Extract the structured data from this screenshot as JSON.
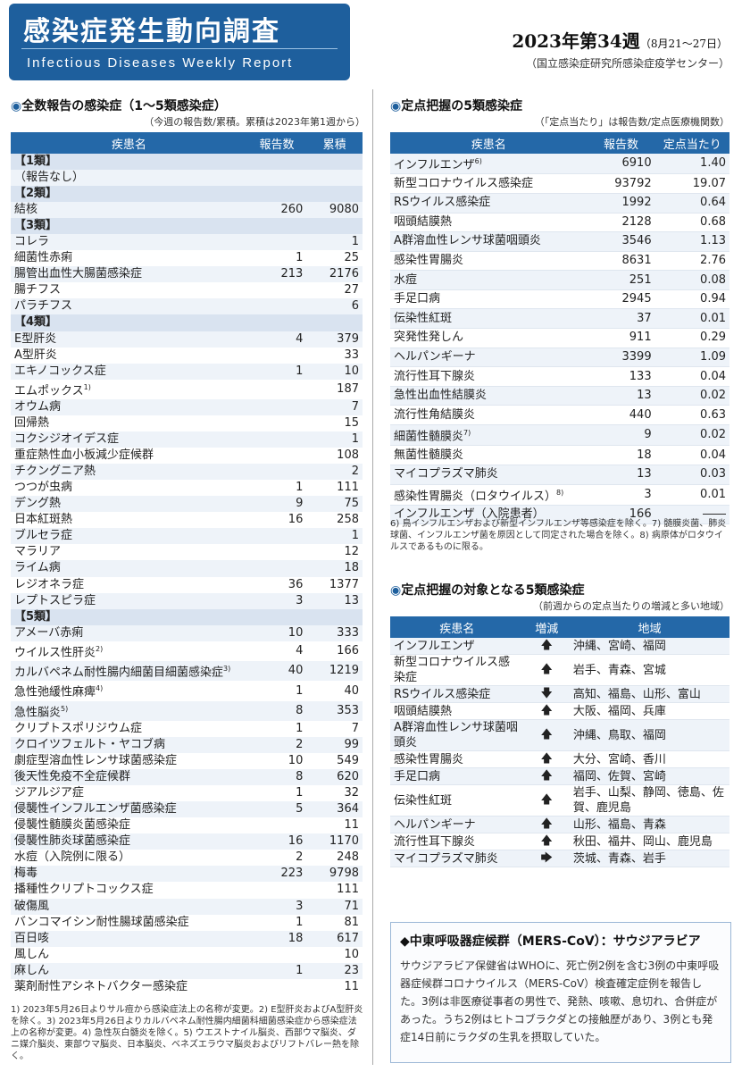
{
  "header": {
    "title_jp": "感染症発生動向調査",
    "title_en": "Infectious Diseases Weekly Report",
    "week": "2023年第34週",
    "week_dates": "（8月21～27日）",
    "agency": "（国立感染症研究所感染症疫学センター）"
  },
  "left": {
    "title": "全数報告の感染症（1～5類感染症）",
    "subtitle": "（今週の報告数/累積。累積は2023年第1週から）",
    "headers": [
      "疾患名",
      "報告数",
      "累積"
    ],
    "rows": [
      {
        "c": "【1類】"
      },
      {
        "n": "（報告なし）",
        "r": "",
        "t": ""
      },
      {
        "c": "【2類】"
      },
      {
        "n": "結核",
        "r": "260",
        "t": "9080"
      },
      {
        "c": "【3類】"
      },
      {
        "n": "コレラ",
        "r": "",
        "t": "1"
      },
      {
        "n": "細菌性赤痢",
        "r": "1",
        "t": "25"
      },
      {
        "n": "腸管出血性大腸菌感染症",
        "r": "213",
        "t": "2176"
      },
      {
        "n": "腸チフス",
        "r": "",
        "t": "27"
      },
      {
        "n": "パラチフス",
        "r": "",
        "t": "6"
      },
      {
        "c": "【4類】"
      },
      {
        "n": "E型肝炎",
        "r": "4",
        "t": "379"
      },
      {
        "n": "A型肝炎",
        "r": "",
        "t": "33"
      },
      {
        "n": "エキノコックス症",
        "r": "1",
        "t": "10"
      },
      {
        "n": "エムポックス",
        "s": "1)",
        "r": "",
        "t": "187"
      },
      {
        "n": "オウム病",
        "r": "",
        "t": "7"
      },
      {
        "n": "回帰熱",
        "r": "",
        "t": "15"
      },
      {
        "n": "コクシジオイデス症",
        "r": "",
        "t": "1"
      },
      {
        "n": "重症熱性血小板減少症候群",
        "r": "",
        "t": "108"
      },
      {
        "n": "チクングニア熱",
        "r": "",
        "t": "2"
      },
      {
        "n": "つつが虫病",
        "r": "1",
        "t": "111"
      },
      {
        "n": "デング熱",
        "r": "9",
        "t": "75"
      },
      {
        "n": "日本紅斑熱",
        "r": "16",
        "t": "258"
      },
      {
        "n": "ブルセラ症",
        "r": "",
        "t": "1"
      },
      {
        "n": "マラリア",
        "r": "",
        "t": "12"
      },
      {
        "n": "ライム病",
        "r": "",
        "t": "18"
      },
      {
        "n": "レジオネラ症",
        "r": "36",
        "t": "1377"
      },
      {
        "n": "レプトスピラ症",
        "r": "3",
        "t": "13"
      },
      {
        "c": "【5類】"
      },
      {
        "n": "アメーバ赤痢",
        "r": "10",
        "t": "333"
      },
      {
        "n": "ウイルス性肝炎",
        "s": "2)",
        "r": "4",
        "t": "166"
      },
      {
        "n": "カルバペネム耐性腸内細菌目細菌感染症",
        "s": "3)",
        "r": "40",
        "t": "1219"
      },
      {
        "n": "急性弛緩性麻痺",
        "s": "4)",
        "r": "1",
        "t": "40"
      },
      {
        "n": "急性脳炎",
        "s": "5)",
        "r": "8",
        "t": "353"
      },
      {
        "n": "クリプトスポリジウム症",
        "r": "1",
        "t": "7"
      },
      {
        "n": "クロイツフェルト・ヤコブ病",
        "r": "2",
        "t": "99"
      },
      {
        "n": "劇症型溶血性レンサ球菌感染症",
        "r": "10",
        "t": "549"
      },
      {
        "n": "後天性免疫不全症候群",
        "r": "8",
        "t": "620"
      },
      {
        "n": "ジアルジア症",
        "r": "1",
        "t": "32"
      },
      {
        "n": "侵襲性インフルエンザ菌感染症",
        "r": "5",
        "t": "364"
      },
      {
        "n": "侵襲性髄膜炎菌感染症",
        "r": "",
        "t": "11"
      },
      {
        "n": "侵襲性肺炎球菌感染症",
        "r": "16",
        "t": "1170"
      },
      {
        "n": "水痘（入院例に限る）",
        "r": "2",
        "t": "248"
      },
      {
        "n": "梅毒",
        "r": "223",
        "t": "9798"
      },
      {
        "n": "播種性クリプトコックス症",
        "r": "",
        "t": "111"
      },
      {
        "n": "破傷風",
        "r": "3",
        "t": "71"
      },
      {
        "n": "バンコマイシン耐性腸球菌感染症",
        "r": "1",
        "t": "81"
      },
      {
        "n": "百日咳",
        "r": "18",
        "t": "617"
      },
      {
        "n": "風しん",
        "r": "",
        "t": "10"
      },
      {
        "n": "麻しん",
        "r": "1",
        "t": "23"
      },
      {
        "n": "薬剤耐性アシネトバクター感染症",
        "r": "",
        "t": "11"
      }
    ],
    "footnote": "1) 2023年5月26日よりサル痘から感染症法上の名称が変更。2) E型肝炎およびA型肝炎を除く。3) 2023年5月26日よりカルバペネム耐性腸内細菌科細菌感染症から感染症法上の名称が変更。4) 急性灰白髄炎を除く。5) ウエストナイル脳炎、西部ウマ脳炎、ダニ媒介脳炎、東部ウマ脳炎、日本脳炎、ベネズエラウマ脳炎およびリフトバレー熱を除く。"
  },
  "right": {
    "title": "定点把握の5類感染症",
    "subtitle": "（「定点当たり」は報告数/定点医療機関数）",
    "headers": [
      "疾患名",
      "報告数",
      "定点当たり"
    ],
    "rows": [
      {
        "n": "インフルエンザ",
        "s": "6)",
        "r": "6910",
        "p": "1.40"
      },
      {
        "n": "新型コロナウイルス感染症",
        "r": "93792",
        "p": "19.07"
      },
      {
        "n": "RSウイルス感染症",
        "r": "1992",
        "p": "0.64"
      },
      {
        "n": "咽頭結膜熱",
        "r": "2128",
        "p": "0.68"
      },
      {
        "n": "A群溶血性レンサ球菌咽頭炎",
        "r": "3546",
        "p": "1.13"
      },
      {
        "n": "感染性胃腸炎",
        "r": "8631",
        "p": "2.76"
      },
      {
        "n": "水痘",
        "r": "251",
        "p": "0.08"
      },
      {
        "n": "手足口病",
        "r": "2945",
        "p": "0.94"
      },
      {
        "n": "伝染性紅斑",
        "r": "37",
        "p": "0.01"
      },
      {
        "n": "突発性発しん",
        "r": "911",
        "p": "0.29"
      },
      {
        "n": "ヘルパンギーナ",
        "r": "3399",
        "p": "1.09"
      },
      {
        "n": "流行性耳下腺炎",
        "r": "133",
        "p": "0.04"
      },
      {
        "n": "急性出血性結膜炎",
        "r": "13",
        "p": "0.02"
      },
      {
        "n": "流行性角結膜炎",
        "r": "440",
        "p": "0.63"
      },
      {
        "n": "細菌性髄膜炎",
        "s": "7)",
        "r": "9",
        "p": "0.02"
      },
      {
        "n": "無菌性髄膜炎",
        "r": "18",
        "p": "0.04"
      },
      {
        "n": "マイコプラズマ肺炎",
        "r": "13",
        "p": "0.03"
      },
      {
        "n": "感染性胃腸炎（ロタウイルス）",
        "s": "8)",
        "r": "3",
        "p": "0.01"
      },
      {
        "n": "インフルエンザ（入院患者）",
        "r": "166",
        "p": "――"
      }
    ],
    "footnote": "6) 鳥インフルエンザおよび新型インフルエンザ等感染症を除く。7) 髄膜炎菌、肺炎球菌、インフルエンザ菌を原因として同定された場合を除く。8) 病原体がロタウイルスであるものに限る。"
  },
  "trend": {
    "title": "定点把握の対象となる5類感染症",
    "subtitle": "（前週からの定点当たりの増減と多い地域）",
    "headers": [
      "疾患名",
      "増減",
      "地域"
    ],
    "rows": [
      {
        "n": "インフルエンザ",
        "a": "🡅",
        "g": "沖縄、宮崎、福岡"
      },
      {
        "n": "新型コロナウイルス感染症",
        "a": "🡅",
        "g": "岩手、青森、宮城"
      },
      {
        "n": "RSウイルス感染症",
        "a": "🡇",
        "g": "高知、福島、山形、富山"
      },
      {
        "n": "咽頭結膜熱",
        "a": "🡅",
        "g": "大阪、福岡、兵庫"
      },
      {
        "n": "A群溶血性レンサ球菌咽頭炎",
        "a": "🡅",
        "g": "沖縄、鳥取、福岡"
      },
      {
        "n": "感染性胃腸炎",
        "a": "🡅",
        "g": "大分、宮崎、香川"
      },
      {
        "n": "手足口病",
        "a": "🡅",
        "g": "福岡、佐賀、宮崎"
      },
      {
        "n": "伝染性紅斑",
        "a": "🡅",
        "g": "岩手、山梨、静岡、徳島、佐賀、鹿児島"
      },
      {
        "n": "ヘルパンギーナ",
        "a": "🡅",
        "g": "山形、福島、青森"
      },
      {
        "n": "流行性耳下腺炎",
        "a": "🡅",
        "g": "秋田、福井、岡山、鹿児島"
      },
      {
        "n": "マイコプラズマ肺炎",
        "a": "🡆",
        "g": "茨城、青森、岩手"
      }
    ]
  },
  "mers": {
    "title": "◆中東呼吸器症候群（MERS-CoV）：サウジアラビア",
    "body": "サウジアラビア保健省はWHOに、死亡例2例を含む3例の中東呼吸器症候群コロナウイルス（MERS-CoV）検査確定症例を報告した。3例は非医療従事者の男性で、発熱、咳嗽、息切れ、合併症があった。うち2例はヒトコブラクダとの接触歴があり、3例とも発症14日前にラクダの生乳を摂取していた。"
  },
  "colors": {
    "accent": "#1e5f9d",
    "header_bg": "#2468a8"
  }
}
